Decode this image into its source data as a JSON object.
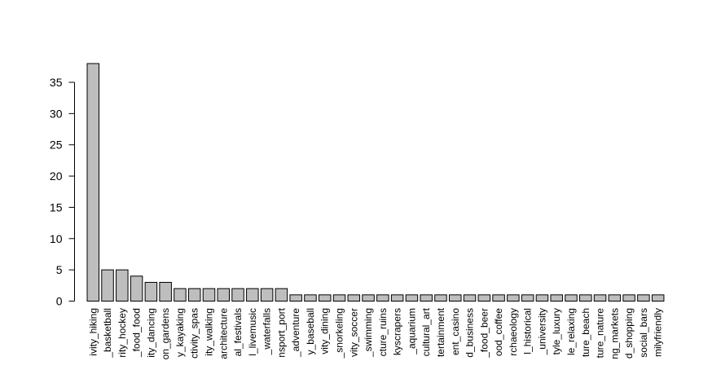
{
  "chart_data": {
    "type": "bar",
    "title": "",
    "xlabel": "",
    "ylabel": "",
    "ylim": [
      0,
      38
    ],
    "yticks": [
      0,
      5,
      10,
      15,
      20,
      25,
      30,
      35
    ],
    "grid": false,
    "bar_color": "#bebebe",
    "edge_color": "#000000",
    "categories": [
      "ivity_hiking",
      "_basketball",
      "rity_hockey",
      "_food_food",
      "ity_dancing",
      "on_gardens",
      "y_kayaking",
      "ctivity_spas",
      "ity_walking",
      "architecture",
      "al_festivals",
      "l_livemusic",
      "_waterfalls",
      "nsport_port",
      "_adventure",
      "y_baseball",
      "vity_dining",
      "_snorkeling",
      "vity_soccer",
      "_swimming",
      "cture_ruins",
      "kyscrapers",
      "_aquarium",
      "cultural_art",
      "tertainment",
      "ent_casino",
      "d_business",
      "_food_beer",
      "ood_coffee",
      "rchaeology",
      "l_historical",
      "_university",
      "tyle_luxury",
      "le_relaxing",
      "ture_beach",
      "ture_nature",
      "ng_markets",
      "d_shopping",
      "social_bars",
      "milyfriendly"
    ],
    "values": [
      38,
      5,
      5,
      4,
      3,
      3,
      2,
      2,
      2,
      2,
      2,
      2,
      2,
      2,
      1,
      1,
      1,
      1,
      1,
      1,
      1,
      1,
      1,
      1,
      1,
      1,
      1,
      1,
      1,
      1,
      1,
      1,
      1,
      1,
      1,
      1,
      1,
      1,
      1,
      1
    ]
  }
}
